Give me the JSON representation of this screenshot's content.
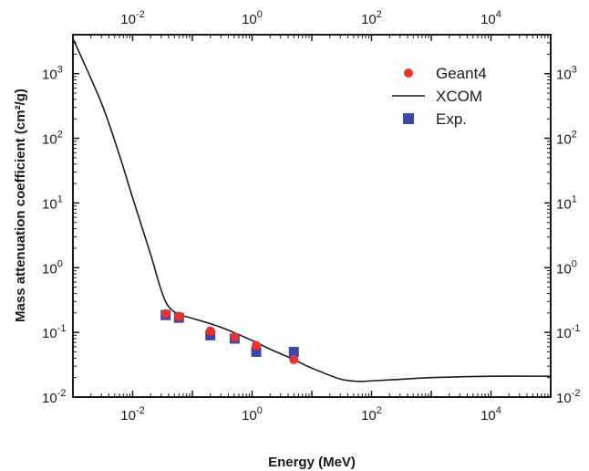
{
  "chart_data": {
    "type": "scatter",
    "title": "",
    "xlabel": "Energy (MeV)",
    "ylabel": "Mass attenuation coefficient (cm²/g)",
    "x_scale": "log",
    "y_scale": "log",
    "xlim": [
      0.001,
      100000
    ],
    "ylim": [
      0.01,
      4000
    ],
    "x_ticks": [
      0.01,
      1,
      100,
      10000
    ],
    "y_ticks": [
      0.01,
      0.1,
      1,
      10,
      100,
      1000
    ],
    "x_tick_labels": [
      "10",
      "10",
      "10",
      "10"
    ],
    "x_tick_exponents": [
      "-2",
      "0",
      "2",
      "4"
    ],
    "y_tick_labels": [
      "10",
      "10",
      "10",
      "10",
      "10",
      "10"
    ],
    "y_tick_exponents": [
      "-2",
      "-1",
      "0",
      "1",
      "2",
      "3"
    ],
    "mirrored_axes": true,
    "grid": false,
    "legend_position": "top-right",
    "series": [
      {
        "name": "Geant4",
        "type": "scatter",
        "marker": "circle",
        "color": "#e8322d",
        "points": [
          [
            0.0356,
            0.195
          ],
          [
            0.0595,
            0.178
          ],
          [
            0.2,
            0.105
          ],
          [
            0.511,
            0.085
          ],
          [
            1.173,
            0.063
          ],
          [
            5.0,
            0.038
          ]
        ]
      },
      {
        "name": "XCOM",
        "type": "line",
        "color": "#1a1a1a",
        "points": [
          [
            0.001,
            3500
          ],
          [
            0.003,
            350
          ],
          [
            0.006,
            55
          ],
          [
            0.01,
            12
          ],
          [
            0.02,
            1.6
          ],
          [
            0.03,
            0.45
          ],
          [
            0.04,
            0.25
          ],
          [
            0.06,
            0.19
          ],
          [
            0.1,
            0.165
          ],
          [
            0.3,
            0.12
          ],
          [
            1,
            0.075
          ],
          [
            2,
            0.055
          ],
          [
            5,
            0.038
          ],
          [
            10,
            0.028
          ],
          [
            30,
            0.019
          ],
          [
            60,
            0.0175
          ],
          [
            100,
            0.0178
          ],
          [
            300,
            0.0188
          ],
          [
            1000,
            0.02
          ],
          [
            10000,
            0.021
          ],
          [
            100000,
            0.021
          ]
        ]
      },
      {
        "name": "Exp.",
        "type": "scatter",
        "marker": "square",
        "color": "#3f48a8",
        "points": [
          [
            0.0356,
            0.185
          ],
          [
            0.0595,
            0.168
          ],
          [
            0.2,
            0.09
          ],
          [
            0.511,
            0.08
          ],
          [
            1.173,
            0.05
          ],
          [
            5.0,
            0.05
          ]
        ]
      }
    ]
  }
}
